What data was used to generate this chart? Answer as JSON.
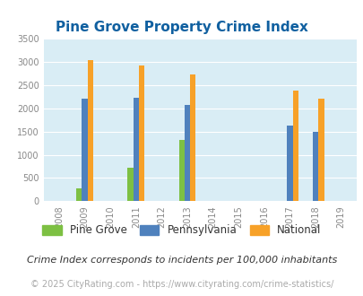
{
  "title": "Pine Grove Property Crime Index",
  "years": [
    2008,
    2009,
    2010,
    2011,
    2012,
    2013,
    2014,
    2015,
    2016,
    2017,
    2018,
    2019
  ],
  "pine_grove": {
    "2009": 270,
    "2011": 720,
    "2013": 1310
  },
  "pennsylvania": {
    "2009": 2200,
    "2011": 2230,
    "2013": 2080,
    "2017": 1630,
    "2018": 1490
  },
  "national": {
    "2009": 3030,
    "2011": 2920,
    "2013": 2730,
    "2017": 2370,
    "2018": 2210
  },
  "bar_width": 0.22,
  "colors": {
    "pine_grove": "#7dc043",
    "pennsylvania": "#4f81bd",
    "national": "#f7a128"
  },
  "ylim": [
    0,
    3500
  ],
  "yticks": [
    0,
    500,
    1000,
    1500,
    2000,
    2500,
    3000,
    3500
  ],
  "bg_color": "#d9edf5",
  "title_color": "#1060a0",
  "legend_labels": [
    "Pine Grove",
    "Pennsylvania",
    "National"
  ],
  "footnote1": "Crime Index corresponds to incidents per 100,000 inhabitants",
  "footnote2": "© 2025 CityRating.com - https://www.cityrating.com/crime-statistics/",
  "title_fontsize": 11,
  "tick_fontsize": 7,
  "legend_fontsize": 8.5,
  "footnote1_fontsize": 8,
  "footnote2_fontsize": 7
}
